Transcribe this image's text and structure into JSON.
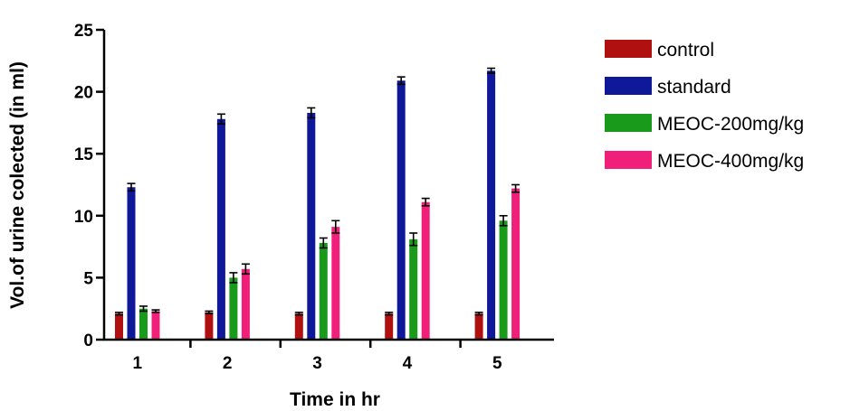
{
  "chart_data": {
    "type": "bar",
    "categories": [
      "1",
      "2",
      "3",
      "4",
      "5"
    ],
    "xlabel": "Time in hr",
    "ylabel": "Vol.of urine colected (in ml)",
    "ylim": [
      0,
      25
    ],
    "yticks": [
      0,
      5,
      10,
      15,
      20,
      25
    ],
    "grid": false,
    "legend_position": "right",
    "series": [
      {
        "name": "control",
        "color": "#b01010",
        "values": [
          2.1,
          2.2,
          2.1,
          2.1,
          2.1
        ],
        "errors": [
          0.1,
          0.1,
          0.1,
          0.1,
          0.1
        ]
      },
      {
        "name": "standard",
        "color": "#10189a",
        "values": [
          12.3,
          17.8,
          18.3,
          20.9,
          21.7
        ],
        "errors": [
          0.3,
          0.4,
          0.4,
          0.3,
          0.2
        ]
      },
      {
        "name": "MEOC-200mg/kg",
        "color": "#1a9a1a",
        "values": [
          2.5,
          5.0,
          7.8,
          8.1,
          9.6
        ],
        "errors": [
          0.2,
          0.4,
          0.4,
          0.5,
          0.4
        ]
      },
      {
        "name": "MEOC-400mg/kg",
        "color": "#f0207a",
        "values": [
          2.3,
          5.7,
          9.1,
          11.1,
          12.2
        ],
        "errors": [
          0.1,
          0.4,
          0.5,
          0.3,
          0.3
        ]
      }
    ]
  }
}
